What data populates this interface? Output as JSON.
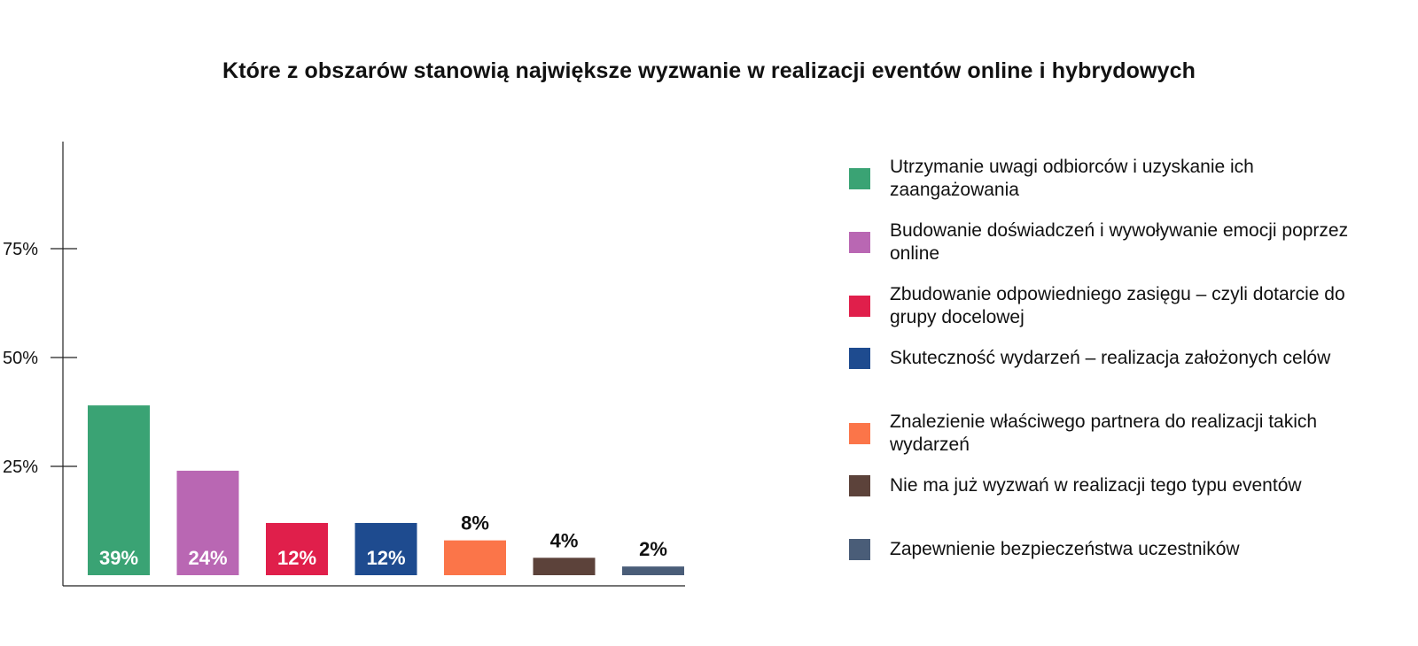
{
  "chart_data": {
    "type": "bar",
    "title": "Które z obszarów stanowią największe wyzwanie w realizacji eventów online i hybrydowych",
    "xlabel": "",
    "ylabel": "",
    "ylim": [
      0,
      100
    ],
    "yticks": [
      {
        "value": 25,
        "label": "25%"
      },
      {
        "value": 50,
        "label": "50%"
      },
      {
        "value": 75,
        "label": "75%"
      }
    ],
    "grid": false,
    "legend_position": "right",
    "categories": [
      "Utrzymanie uwagi odbiorców i uzyskanie ich zaangażowania",
      "Budowanie doświadczeń i wywoływanie emocji poprzez online",
      "Zbudowanie odpowiedniego zasięgu – czyli dotarcie do grupy docelowej",
      "Skuteczność wydarzeń – realizacja założonych celów",
      "Znalezienie właściwego partnera do realizacji takich wydarzeń",
      "Nie ma już wyzwań w realizacji tego typu eventów",
      "Zapewnienie bezpieczeństwa uczestników"
    ],
    "values": [
      39,
      24,
      12,
      12,
      8,
      4,
      2
    ],
    "value_labels": [
      "39%",
      "24%",
      "12%",
      "12%",
      "8%",
      "4%",
      "2%"
    ],
    "colors": [
      "#3aa374",
      "#b967b3",
      "#e01f4b",
      "#1e4b8f",
      "#fb7549",
      "#5c423a",
      "#4a5d78"
    ]
  }
}
